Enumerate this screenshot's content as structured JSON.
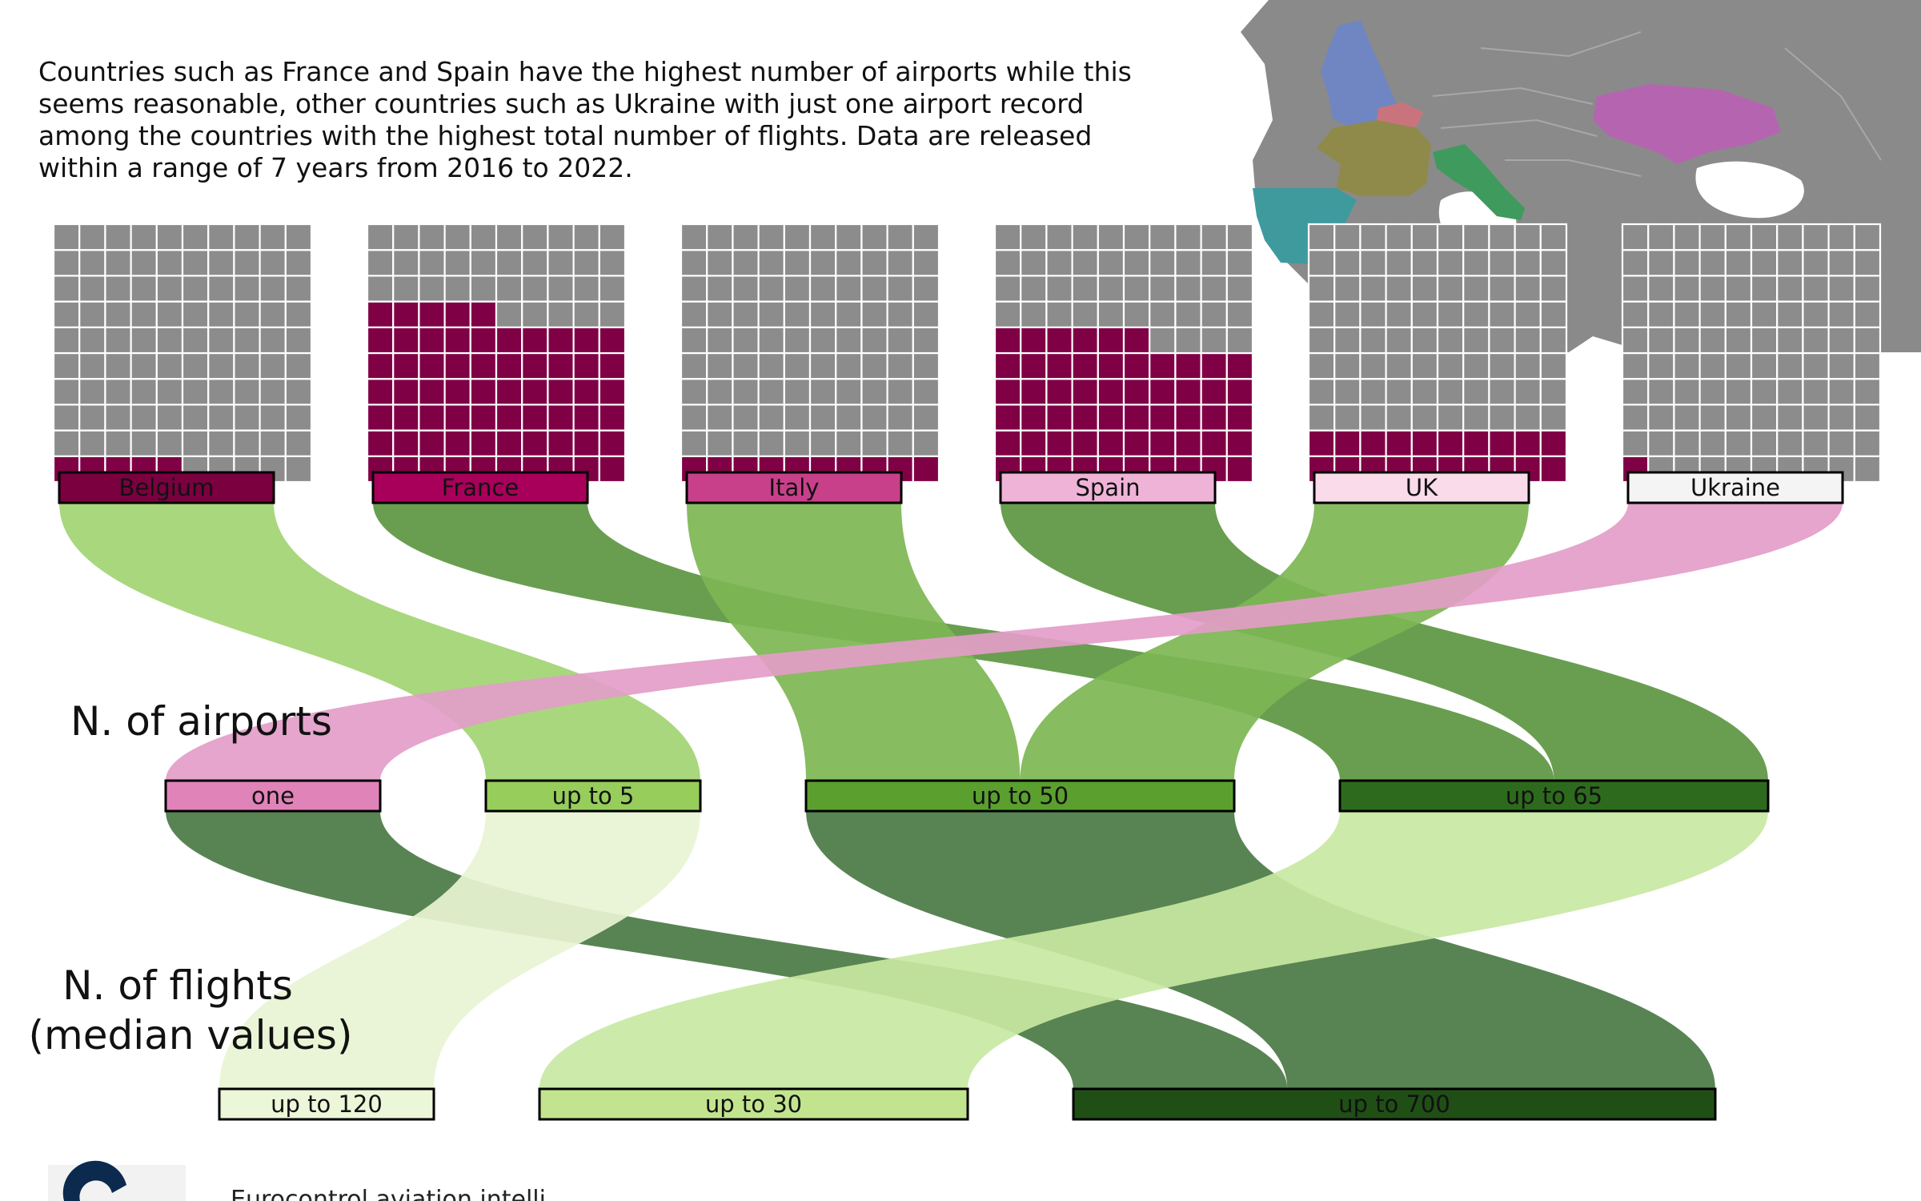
{
  "description": [
    "Countries such as France and Spain have the highest number of airports while this",
    "seems reasonable, other countries such as Ukraine with just one airport record",
    "among the countries with the highest total number of flights. Data are released",
    "within a range of 7 years from 2016 to 2022."
  ],
  "footer_text": "Eurocontrol aviation intelli",
  "chart_data": {
    "type": "sankey",
    "waffle": {
      "rows": 10,
      "cols": 10,
      "unit": "airport"
    },
    "countries": [
      {
        "name": "Belgium",
        "airports": 5,
        "color": "#7a0040"
      },
      {
        "name": "France",
        "airports": 65,
        "color": "#a8005a"
      },
      {
        "name": "Italy",
        "airports": 10,
        "color": "#c9408a"
      },
      {
        "name": "Spain",
        "airports": 56,
        "color": "#f0b3d8"
      },
      {
        "name": "UK",
        "airports": 20,
        "color": "#fadbea"
      },
      {
        "name": "Ukraine",
        "airports": 1,
        "color": "#f4f4f4"
      }
    ],
    "stages": {
      "airports_label": "N. of airports",
      "flights_label": [
        "N. of flights",
        "(median values)"
      ]
    },
    "airport_bins": [
      {
        "name": "one",
        "color": "#e083b8"
      },
      {
        "name": "up to 5",
        "color": "#96cd5b"
      },
      {
        "name": "up to 50",
        "color": "#5b9f2f"
      },
      {
        "name": "up to 65",
        "color": "#2e6a1d"
      }
    ],
    "flight_bins": [
      {
        "name": "up to 120",
        "color": "#ecf6d8"
      },
      {
        "name": "up to 30",
        "color": "#c2e48e"
      },
      {
        "name": "up to 700",
        "color": "#1f4f15"
      }
    ],
    "links_country_to_airports": [
      {
        "source": "Belgium",
        "target": "up to 5",
        "value": 1,
        "color": "#a2d472"
      },
      {
        "source": "France",
        "target": "up to 65",
        "value": 1,
        "color": "#5c9641"
      },
      {
        "source": "Italy",
        "target": "up to 50",
        "value": 1,
        "color": "#7db654"
      },
      {
        "source": "Spain",
        "target": "up to 65",
        "value": 1,
        "color": "#5c9641"
      },
      {
        "source": "UK",
        "target": "up to 50",
        "value": 1,
        "color": "#7db654"
      },
      {
        "source": "Ukraine",
        "target": "one",
        "value": 1,
        "color": "#e39dc8"
      }
    ],
    "links_airports_to_flights": [
      {
        "source": "one",
        "target": "up to 700",
        "value": 1,
        "color": "#4a7a44"
      },
      {
        "source": "up to 5",
        "target": "up to 120",
        "value": 1,
        "color": "#e8f4d4"
      },
      {
        "source": "up to 50",
        "target": "up to 700",
        "value": 2,
        "color": "#4a7a44"
      },
      {
        "source": "up to 65",
        "target": "up to 30",
        "value": 2,
        "color": "#c8e8a2"
      }
    ]
  }
}
